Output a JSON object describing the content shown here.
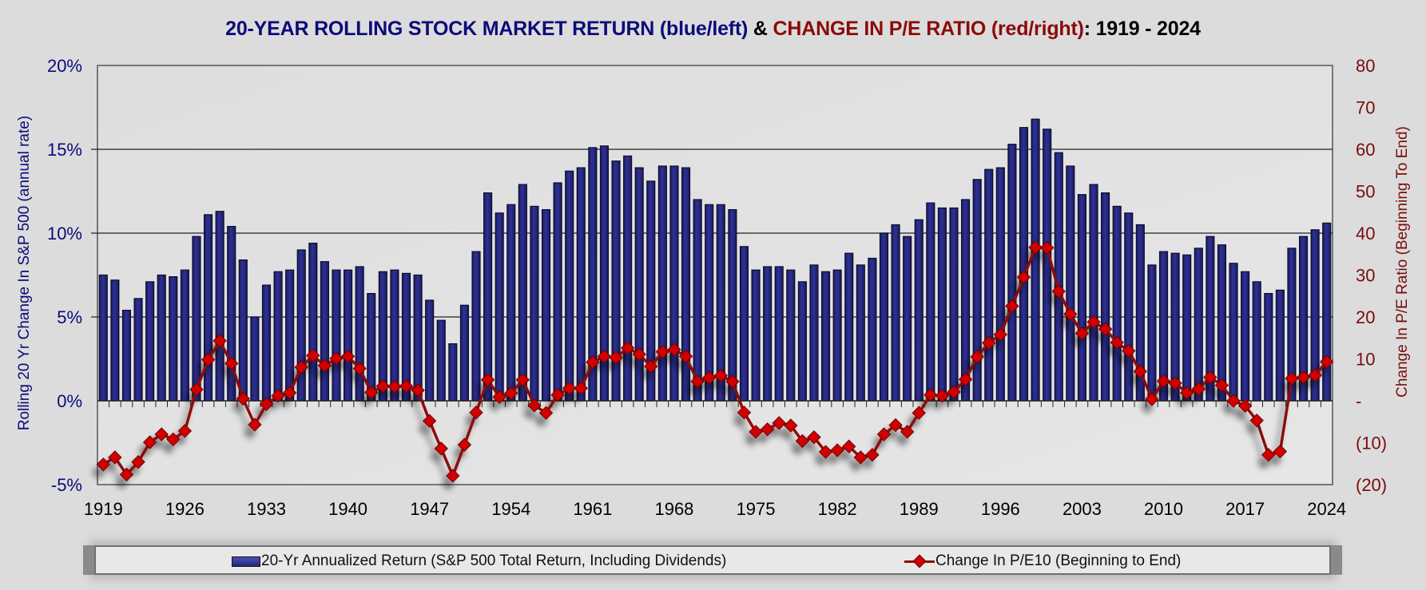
{
  "title": {
    "part1": "20-YEAR ROLLING STOCK MARKET RETURN (blue/left)",
    "part2": " & ",
    "part3": "CHANGE IN P/E RATIO (red/right)",
    "part4": ": 1919 - 2024"
  },
  "colors": {
    "bar": "#23257d",
    "line": "#8b0a0a",
    "marker": "#d10000",
    "left_axis": "#0b0b7a",
    "right_axis": "#7a0c0c"
  },
  "chart_data": {
    "type": "bar+line",
    "title": "20-YEAR ROLLING STOCK MARKET RETURN (blue/left) & CHANGE IN P/E RATIO (red/right): 1919 - 2024",
    "xlabel": "",
    "ylabel_left": "Rolling 20 Yr Change In S&P 500 (annual rate)",
    "ylabel_right": "Change In P/E Ratio (Beginning To End)",
    "ylim_left": [
      -5,
      20
    ],
    "ylim_right": [
      -20,
      80
    ],
    "yticks_left": [
      "20%",
      "15%",
      "10%",
      "5%",
      "0%",
      "-5%"
    ],
    "yticks_left_values": [
      20,
      15,
      10,
      5,
      0,
      -5
    ],
    "yticks_right": [
      "80",
      "70",
      "60",
      "50",
      "40",
      "30",
      "20",
      "10",
      "-",
      "(10)",
      "(20)"
    ],
    "yticks_right_values": [
      80,
      70,
      60,
      50,
      40,
      30,
      20,
      10,
      0,
      -10,
      -20
    ],
    "xticks": [
      "1919",
      "1926",
      "1933",
      "1940",
      "1947",
      "1954",
      "1961",
      "1968",
      "1975",
      "1982",
      "1989",
      "1996",
      "2003",
      "2010",
      "2017",
      "2024"
    ],
    "grid": "horizontal-left-major",
    "legend_position": "bottom",
    "x": [
      1919,
      1920,
      1921,
      1922,
      1923,
      1924,
      1925,
      1926,
      1927,
      1928,
      1929,
      1930,
      1931,
      1932,
      1933,
      1934,
      1935,
      1936,
      1937,
      1938,
      1939,
      1940,
      1941,
      1942,
      1943,
      1944,
      1945,
      1946,
      1947,
      1948,
      1949,
      1950,
      1951,
      1952,
      1953,
      1954,
      1955,
      1956,
      1957,
      1958,
      1959,
      1960,
      1961,
      1962,
      1963,
      1964,
      1965,
      1966,
      1967,
      1968,
      1969,
      1970,
      1971,
      1972,
      1973,
      1974,
      1975,
      1976,
      1977,
      1978,
      1979,
      1980,
      1981,
      1982,
      1983,
      1984,
      1985,
      1986,
      1987,
      1988,
      1989,
      1990,
      1991,
      1992,
      1993,
      1994,
      1995,
      1996,
      1997,
      1998,
      1999,
      2000,
      2001,
      2002,
      2003,
      2004,
      2005,
      2006,
      2007,
      2008,
      2009,
      2010,
      2011,
      2012,
      2013,
      2014,
      2015,
      2016,
      2017,
      2018,
      2019,
      2020,
      2021,
      2022,
      2023,
      2024
    ],
    "series": [
      {
        "name": "20-Yr Annualized Return (S&P 500 Total Return, Including Dividends)",
        "type": "bar",
        "axis": "left",
        "unit": "%",
        "values": [
          7.5,
          7.2,
          5.4,
          6.1,
          7.1,
          7.5,
          7.4,
          7.8,
          9.8,
          11.1,
          11.3,
          10.4,
          8.4,
          5.0,
          6.9,
          7.7,
          7.8,
          9.0,
          9.4,
          8.3,
          7.8,
          7.8,
          8.0,
          6.4,
          7.7,
          7.8,
          7.6,
          7.5,
          6.0,
          4.8,
          3.4,
          5.7,
          8.9,
          12.4,
          11.2,
          11.7,
          12.9,
          11.6,
          11.4,
          13.0,
          13.7,
          13.9,
          15.1,
          15.2,
          14.3,
          14.6,
          13.9,
          13.1,
          14.0,
          14.0,
          13.9,
          12.0,
          11.7,
          11.7,
          11.4,
          9.2,
          7.8,
          8.0,
          8.0,
          7.8,
          7.1,
          8.1,
          7.7,
          7.8,
          8.8,
          8.1,
          8.5,
          10.0,
          10.5,
          9.8,
          10.8,
          11.8,
          11.5,
          11.5,
          12.0,
          13.2,
          13.8,
          13.9,
          15.3,
          16.3,
          16.8,
          16.2,
          14.8,
          14.0,
          12.3,
          12.9,
          12.4,
          11.6,
          11.2,
          10.5,
          8.1,
          8.9,
          8.8,
          8.7,
          9.1,
          9.8,
          9.3,
          8.2,
          7.7,
          7.1,
          6.4,
          6.6,
          9.1,
          9.8,
          10.2,
          10.6
        ]
      },
      {
        "name": "Change In P/E10 (Beginning to End)",
        "type": "line",
        "axis": "right",
        "values": [
          -15.2,
          -13.5,
          -17.6,
          -14.6,
          -9.9,
          -8.0,
          -9.2,
          -7.2,
          2.7,
          9.8,
          14.3,
          8.9,
          0.5,
          -5.7,
          -0.8,
          1.2,
          1.9,
          8.0,
          10.8,
          8.4,
          10.1,
          10.6,
          7.7,
          2.0,
          3.5,
          3.4,
          3.5,
          2.5,
          -4.8,
          -11.4,
          -17.9,
          -10.5,
          -2.8,
          5.0,
          0.9,
          1.8,
          5.0,
          -1.1,
          -2.9,
          1.4,
          3.0,
          3.0,
          9.2,
          10.6,
          10.3,
          12.6,
          11.1,
          8.2,
          11.7,
          12.2,
          10.6,
          4.6,
          5.5,
          6.0,
          4.6,
          -2.8,
          -7.4,
          -6.8,
          -5.3,
          -5.9,
          -9.6,
          -8.7,
          -12.2,
          -11.8,
          -10.9,
          -13.5,
          -12.9,
          -8.0,
          -5.8,
          -7.4,
          -2.9,
          1.4,
          1.2,
          2.1,
          5.1,
          10.5,
          13.8,
          15.8,
          22.6,
          29.5,
          36.6,
          36.5,
          26.1,
          20.7,
          16.1,
          18.8,
          17.1,
          13.9,
          11.9,
          7.0,
          0.4,
          4.7,
          4.2,
          1.9,
          2.8,
          5.6,
          3.7,
          0.0,
          -1.2,
          -4.7,
          -12.9,
          -12.1,
          5.3,
          5.6,
          6.1,
          9.3
        ]
      }
    ]
  },
  "legend": {
    "bar_label": "20-Yr Annualized Return (S&P 500 Total Return, Including Dividends)",
    "line_label": "Change In P/E10 (Beginning to End)",
    "bar_icon": "bar-swatch-icon",
    "line_icon": "line-diamond-marker-icon"
  }
}
